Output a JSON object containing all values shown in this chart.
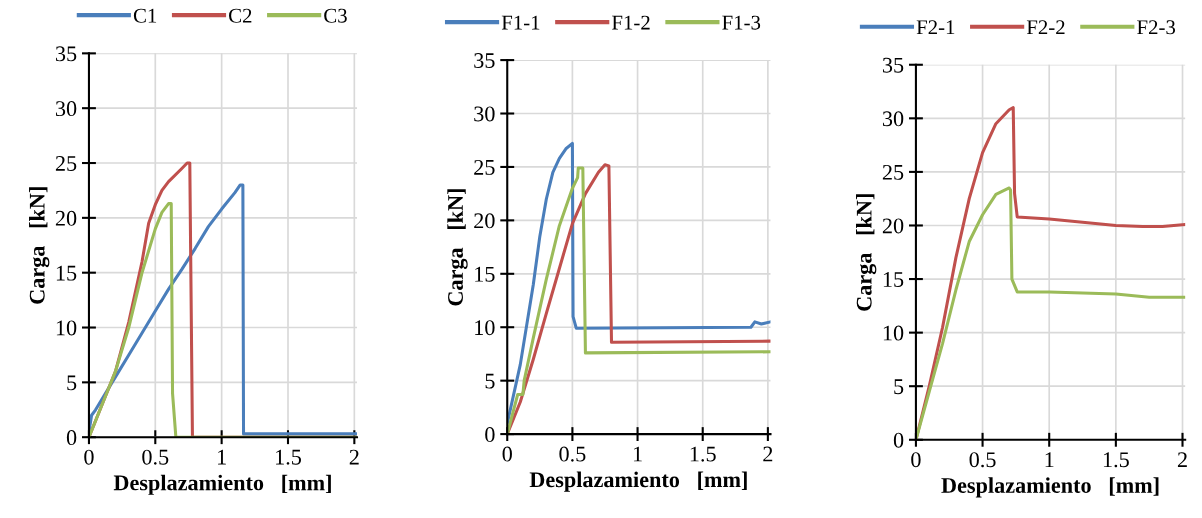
{
  "chart_data": [
    {
      "type": "line",
      "xlabel": "Desplazamiento   [mm]",
      "ylabel": "Carga   [kN]",
      "xlim": [
        0,
        2.02
      ],
      "ylim": [
        0,
        35
      ],
      "xticks": [
        0,
        0.5,
        1,
        1.5,
        2
      ],
      "yticks": [
        0,
        5,
        10,
        15,
        20,
        25,
        30,
        35
      ],
      "grid": true,
      "legend": "top",
      "marker": "none",
      "line_style": "solid",
      "series": [
        {
          "name": "C1",
          "color": "#4a7ebb",
          "x": [
            0,
            0.02,
            0.05,
            0.1,
            0.2,
            0.3,
            0.4,
            0.5,
            0.6,
            0.7,
            0.8,
            0.9,
            1.0,
            1.1,
            1.14,
            1.16,
            1.165,
            2.02
          ],
          "values": [
            0.5,
            2,
            2.5,
            3.5,
            5.5,
            7.5,
            9.5,
            11.5,
            13.5,
            15.3,
            17.2,
            19.2,
            20.8,
            22.3,
            23,
            23,
            0.3,
            0.3
          ]
        },
        {
          "name": "C2",
          "color": "#c0504d",
          "x": [
            0,
            0.05,
            0.1,
            0.2,
            0.3,
            0.4,
            0.45,
            0.5,
            0.55,
            0.6,
            0.7,
            0.74,
            0.76,
            0.78,
            2.02
          ],
          "values": [
            0,
            1.5,
            3,
            6,
            10.5,
            16,
            19.5,
            21.2,
            22.5,
            23.3,
            24.5,
            25,
            25,
            0,
            0
          ]
        },
        {
          "name": "C3",
          "color": "#9bbb59",
          "x": [
            0,
            0.1,
            0.2,
            0.3,
            0.4,
            0.5,
            0.55,
            0.6,
            0.62,
            0.63,
            0.655,
            2.02
          ],
          "values": [
            0,
            3,
            6,
            10,
            15,
            19,
            20.5,
            21.3,
            21.3,
            4,
            0,
            0
          ]
        }
      ]
    },
    {
      "type": "line",
      "xlabel": "Desplazamiento   [mm]",
      "ylabel": "Carga   [kN]",
      "xlim": [
        0,
        2.02
      ],
      "ylim": [
        0,
        35
      ],
      "xticks": [
        0,
        0.5,
        1,
        1.5,
        2
      ],
      "yticks": [
        0,
        5,
        10,
        15,
        20,
        25,
        30,
        35
      ],
      "grid": true,
      "legend": "top",
      "marker": "none",
      "line_style": "solid",
      "series": [
        {
          "name": "F1-1",
          "color": "#4a7ebb",
          "x": [
            0,
            0.1,
            0.2,
            0.25,
            0.3,
            0.35,
            0.4,
            0.45,
            0.5,
            0.505,
            0.53,
            1.87,
            1.9,
            1.95,
            2.02
          ],
          "values": [
            1,
            6.5,
            14,
            18.5,
            22,
            24.5,
            25.8,
            26.7,
            27.2,
            11,
            9.9,
            10,
            10.5,
            10.3,
            10.5
          ]
        },
        {
          "name": "F1-2",
          "color": "#c0504d",
          "x": [
            0,
            0.1,
            0.2,
            0.3,
            0.4,
            0.5,
            0.6,
            0.7,
            0.75,
            0.78,
            0.8,
            2.02
          ],
          "values": [
            0,
            3,
            7,
            11.3,
            15.5,
            19.7,
            22.5,
            24.5,
            25.2,
            25.1,
            8.6,
            8.7
          ]
        },
        {
          "name": "F1-3",
          "color": "#9bbb59",
          "x": [
            0,
            0.08,
            0.12,
            0.13,
            0.2,
            0.3,
            0.4,
            0.5,
            0.54,
            0.545,
            0.58,
            0.6,
            2.02
          ],
          "values": [
            0,
            3.7,
            3.7,
            5,
            9,
            14.5,
            19.5,
            23,
            24,
            24.9,
            24.9,
            7.6,
            7.7
          ]
        }
      ]
    },
    {
      "type": "line",
      "xlabel": "Desplazamiento   [mm]",
      "ylabel": "Carga   [kN]",
      "xlim": [
        0,
        2.02
      ],
      "ylim": [
        0,
        35
      ],
      "xticks": [
        0,
        0.5,
        1,
        1.5,
        2
      ],
      "yticks": [
        0,
        5,
        10,
        15,
        20,
        25,
        30,
        35
      ],
      "grid": true,
      "legend": "top",
      "marker": "none",
      "line_style": "solid",
      "series": [
        {
          "name": "F2-1",
          "color": "#4a7ebb"
        },
        {
          "name": "F2-2",
          "color": "#c0504d",
          "x": [
            0,
            0.1,
            0.2,
            0.3,
            0.4,
            0.5,
            0.6,
            0.7,
            0.73,
            0.74,
            0.76,
            1.0,
            1.25,
            1.5,
            1.7,
            1.85,
            2.02
          ],
          "values": [
            0,
            5,
            10.5,
            17,
            22.5,
            26.8,
            29.5,
            30.8,
            31,
            23,
            20.8,
            20.6,
            20.3,
            20,
            19.9,
            19.9,
            20.1
          ]
        },
        {
          "name": "F2-3",
          "color": "#9bbb59",
          "x": [
            0,
            0.1,
            0.2,
            0.3,
            0.4,
            0.5,
            0.6,
            0.7,
            0.71,
            0.72,
            0.76,
            1.0,
            1.5,
            1.75,
            2.02
          ],
          "values": [
            0,
            4.5,
            9,
            14,
            18.5,
            21,
            22.9,
            23.5,
            23.3,
            15,
            13.8,
            13.8,
            13.6,
            13.3,
            13.3
          ]
        }
      ]
    }
  ]
}
